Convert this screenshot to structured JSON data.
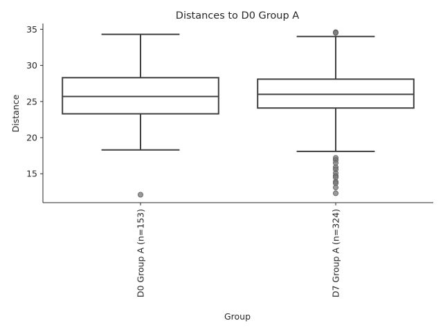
{
  "chart_data": {
    "type": "box",
    "title": "Distances to D0 Group A",
    "xlabel": "Group",
    "ylabel": "Distance",
    "ylim": [
      11.0,
      35.8
    ],
    "yticks": [
      15,
      20,
      25,
      30,
      35
    ],
    "grid": false,
    "categories": [
      "D0 Group A (n=153)",
      "D7 Group A (n=324)"
    ],
    "boxes": [
      {
        "name": "D0 Group A (n=153)",
        "whisker_low": 18.3,
        "q1": 23.3,
        "median": 25.7,
        "q3": 28.3,
        "whisker_high": 34.3,
        "outliers": [
          12.1
        ]
      },
      {
        "name": "D7 Group A (n=324)",
        "whisker_low": 18.1,
        "q1": 24.1,
        "median": 26.0,
        "q3": 28.1,
        "whisker_high": 34.0,
        "outliers": [
          34.6,
          34.5,
          17.2,
          16.9,
          16.5,
          15.9,
          15.6,
          15.1,
          14.7,
          14.5,
          13.9,
          13.7,
          13.1,
          12.3
        ]
      }
    ],
    "colors": {
      "box_edge": "#3f3f3f",
      "outlier_fill": "#777777",
      "axis": "#262626",
      "text": "#262626"
    }
  }
}
